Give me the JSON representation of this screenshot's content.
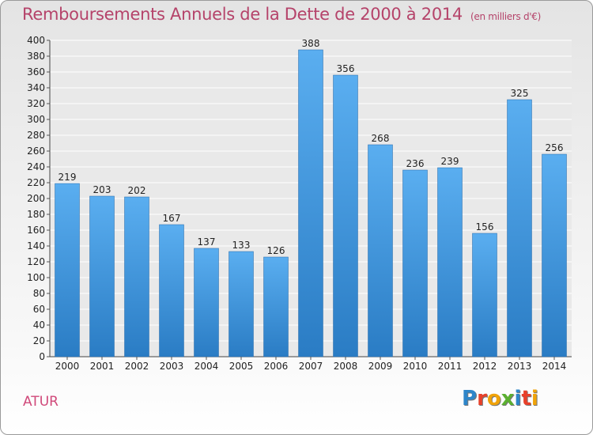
{
  "chart_data": {
    "type": "bar",
    "title": "Remboursements Annuels de la Dette de 2000 à 2014",
    "unit_label": "(en milliers d'€)",
    "categories": [
      "2000",
      "2001",
      "2002",
      "2003",
      "2004",
      "2005",
      "2006",
      "2007",
      "2008",
      "2009",
      "2010",
      "2011",
      "2012",
      "2013",
      "2014"
    ],
    "values": [
      219,
      203,
      202,
      167,
      137,
      133,
      126,
      388,
      356,
      268,
      236,
      239,
      156,
      325,
      256
    ],
    "value_labels": [
      "219",
      "203",
      "202",
      "167",
      "137",
      "133",
      "126",
      "388",
      "356",
      "268",
      "236",
      "239",
      "156",
      "325",
      "256"
    ],
    "ylim": [
      0,
      400
    ],
    "yticks": [
      "0",
      "20",
      "40",
      "60",
      "80",
      "100",
      "120",
      "140",
      "160",
      "180",
      "200",
      "220",
      "240",
      "260",
      "280",
      "300",
      "320",
      "340",
      "360",
      "380",
      "400"
    ],
    "grid": true,
    "bar_color": "#3d8fd6"
  },
  "footer": {
    "commune": "ATUR",
    "logo_letters": [
      "P",
      "r",
      "o",
      "x",
      "i",
      "t",
      "i"
    ],
    "logo_colors": [
      "#2e86c9",
      "#e8402a",
      "#f0a30a",
      "#5bb030",
      "#2e86c9",
      "#e8402a",
      "#f0a30a"
    ]
  }
}
